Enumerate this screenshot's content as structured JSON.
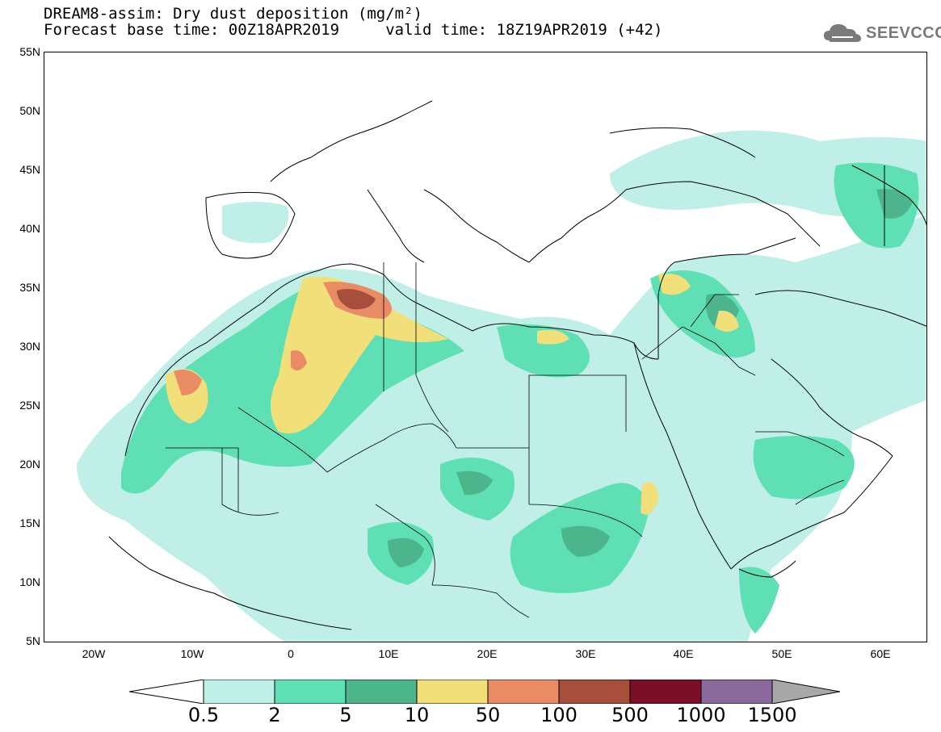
{
  "header": {
    "title_line1": "DREAM8-assim: Dry dust deposition (mg/m²)",
    "title_line2": "Forecast base time: 00Z18APR2019     valid time: 18Z19APR2019 (+42)",
    "logo_text": "SEEVCCC"
  },
  "map": {
    "lat_labels": [
      "55N",
      "50N",
      "45N",
      "40N",
      "35N",
      "30N",
      "25N",
      "20N",
      "15N",
      "10N",
      "5N"
    ],
    "lon_labels": [
      "20W",
      "10W",
      "0",
      "10E",
      "20E",
      "30E",
      "40E",
      "50E",
      "60E"
    ],
    "colors": {
      "level_0_5": "#c0efe8",
      "level_2": "#5fe0b4",
      "level_5": "#4cb58c",
      "level_10": "#f1e07a",
      "level_50": "#e98c66",
      "level_100": "#a84e3c",
      "level_500": "#7a0f27",
      "level_1000": "#8a6a9c",
      "level_1500": "#a8a8a8",
      "coast": "#000000"
    }
  },
  "colorbar": {
    "labels": [
      "0.5",
      "2",
      "5",
      "10",
      "50",
      "100",
      "500",
      "1000",
      "1500"
    ],
    "colors": [
      "#c0efe8",
      "#5fe0b4",
      "#4cb58c",
      "#f1e07a",
      "#e98c66",
      "#a84e3c",
      "#7a0f27",
      "#8a6a9c"
    ],
    "over_color": "#a8a8a8"
  }
}
